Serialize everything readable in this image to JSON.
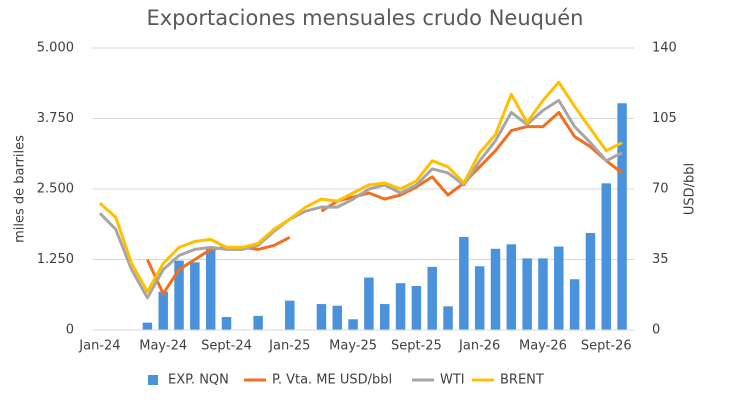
{
  "chart_data": {
    "type": "bar",
    "title": "Exportaciones mensuales crudo Neuquén",
    "y_label": "miles de barriles",
    "y2_label": "USD/bbl",
    "categories": [
      "Jan-24",
      null,
      null,
      null,
      "May-24",
      null,
      null,
      null,
      "Sept-24",
      null,
      null,
      null,
      "Jan-25",
      null,
      null,
      null,
      "May-25",
      null,
      null,
      null,
      "Sept-25",
      null,
      null,
      null,
      "Jan-26",
      null,
      null,
      null,
      "May-26",
      null,
      null,
      null,
      "Sept-26",
      null
    ],
    "ylim": [
      0,
      5000
    ],
    "yticks": [
      0,
      {
        "value": 1250,
        "label": "1.250"
      },
      {
        "value": 2500,
        "label": "2.500"
      },
      {
        "value": 3750,
        "label": "3.750"
      },
      {
        "value": 5000,
        "label": "5.000"
      }
    ],
    "y2lim": [
      0,
      140
    ],
    "y2ticks": [
      0,
      35,
      70,
      105,
      140
    ],
    "grid": true,
    "legend": "bottom",
    "series": [
      {
        "name": "EXP. NQN",
        "type": "bar",
        "color": "#4a93dc",
        "values": [
          null,
          null,
          null,
          130,
          680,
          1230,
          1200,
          1480,
          230,
          null,
          250,
          null,
          520,
          null,
          460,
          430,
          190,
          930,
          460,
          830,
          780,
          1120,
          420,
          1650,
          1130,
          1440,
          1520,
          1270,
          1270,
          1480,
          900,
          1720,
          2600,
          4020
        ]
      },
      {
        "name": "P. Vta. ME USD/bbl",
        "type": "line",
        "axis": "y2",
        "color": "#f07020",
        "values": [
          null,
          null,
          null,
          35,
          18,
          30,
          35,
          40,
          41,
          41,
          40,
          42,
          46,
          null,
          59,
          64,
          66,
          68,
          65,
          67,
          71,
          76,
          67,
          73,
          81,
          89,
          99,
          101,
          101,
          108,
          96,
          91,
          84,
          78
        ]
      },
      {
        "name": "WTI",
        "type": "line",
        "axis": "y2",
        "color": "#a6a6a6",
        "values": [
          58,
          50,
          30,
          16,
          30,
          37,
          40,
          41,
          40,
          40,
          42,
          49,
          55,
          59,
          61,
          61,
          65,
          70,
          72,
          68,
          72,
          80,
          78,
          72,
          84,
          94,
          108,
          102,
          109,
          114,
          101,
          93,
          84,
          88
        ]
      },
      {
        "name": "BRENT",
        "type": "line",
        "axis": "y2",
        "color": "#ffc000",
        "values": [
          63,
          56,
          33,
          19,
          33,
          41,
          44,
          45,
          41,
          41,
          43,
          50,
          55,
          61,
          65,
          64,
          68,
          72,
          73,
          70,
          74,
          84,
          81,
          73,
          88,
          97,
          117,
          103,
          114,
          123,
          111,
          100,
          89,
          93
        ]
      }
    ]
  }
}
